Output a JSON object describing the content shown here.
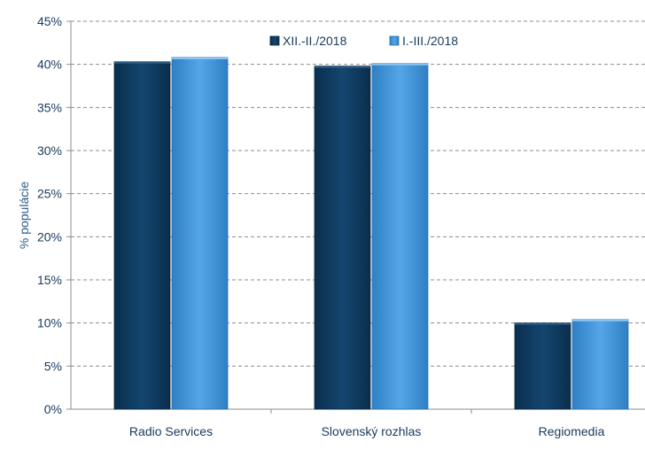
{
  "chart_data": {
    "type": "bar",
    "categories": [
      "Radio Services",
      "Slovenský rozhlas",
      "Regiomedia"
    ],
    "series": [
      {
        "name": "XII.-II./2018",
        "values": [
          40.3,
          39.8,
          10.0
        ],
        "color": "#0f3d63"
      },
      {
        "name": "I.-III./2018",
        "values": [
          40.8,
          40.1,
          10.4
        ],
        "color": "#3d8fd6"
      }
    ],
    "ylabel": "% populácie",
    "ylim": [
      0,
      45
    ],
    "yticks": [
      0,
      5,
      10,
      15,
      20,
      25,
      30,
      35,
      40,
      45
    ],
    "ytick_labels": [
      "0%",
      "5%",
      "10%",
      "15%",
      "20%",
      "25%",
      "30%",
      "35%",
      "40%",
      "45%"
    ],
    "grid": true,
    "legend_position": "top-right"
  }
}
